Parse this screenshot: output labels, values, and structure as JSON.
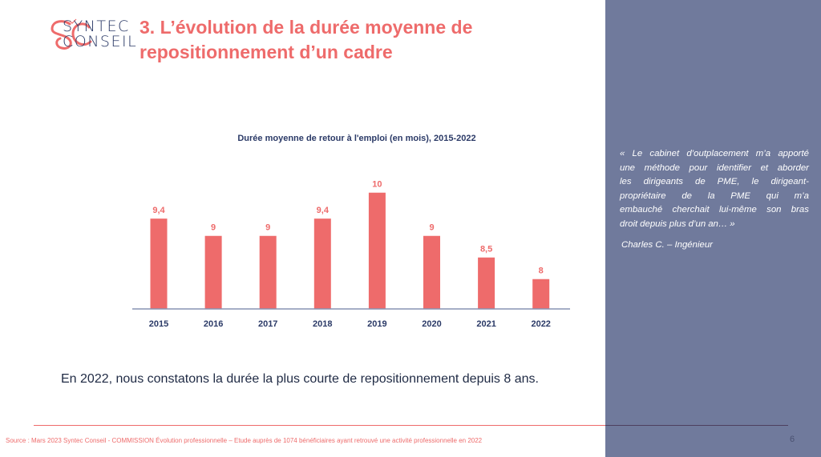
{
  "logo": {
    "line1": "SYNTEC",
    "line2": "CONSEIL"
  },
  "header": {
    "title_line1": "3. L’évolution de la durée moyenne de",
    "title_line2": "repositionnement d’un cadre"
  },
  "chart_data": {
    "type": "bar",
    "title": "Durée moyenne de retour à l'emploi (en mois), 2015-2022",
    "categories": [
      "2015",
      "2016",
      "2017",
      "2018",
      "2019",
      "2020",
      "2021",
      "2022"
    ],
    "values": [
      9.4,
      9,
      9,
      9.4,
      10,
      9,
      8.5,
      8
    ],
    "data_labels": [
      "9,4",
      "9",
      "9",
      "9,4",
      "10",
      "9",
      "8,5",
      "8"
    ],
    "xlabel": "",
    "ylabel": "",
    "grid": false,
    "bar_color": "#ee6b6b",
    "label_color": "#ee6b6b",
    "axis_label_color": "#2b3a67"
  },
  "statement": "En 2022, nous constatons la durée la plus courte de repositionnement depuis 8 ans.",
  "quote": {
    "lines": [
      "« Le cabinet d’outplacement m’a apporté",
      "une méthode pour identifier et aborder",
      "les dirigeants de PME, le dirigeant-",
      "propriétaire  de la PME qui m’a",
      "embauché cherchait lui-même son bras",
      "droit depuis plus d’un an… »"
    ],
    "author": "Charles C. – Ingénieur"
  },
  "footer": {
    "source": "Source : Mars 2023  Syntec Conseil - COMMISSION Évolution professionnelle – Etude auprès de 1074 bénéficiaires ayant retrouvé une activité professionnelle en 2022",
    "page_number": "6"
  },
  "colors": {
    "accent": "#ee6b6b",
    "navy": "#2b3a67",
    "panel": "#707a9c"
  }
}
